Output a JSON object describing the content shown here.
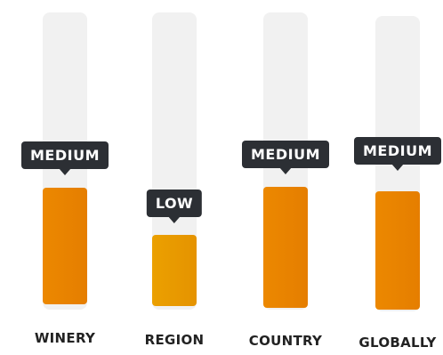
{
  "meters": [
    {
      "label": "WINERY",
      "level": "MEDIUM"
    },
    {
      "label": "REGION",
      "level": "LOW"
    },
    {
      "label": "COUNTRY",
      "level": "MEDIUM"
    },
    {
      "label": "GLOBALLY",
      "level": "MEDIUM"
    }
  ],
  "colors": {
    "track": "#f1f1f1",
    "fill_medium": "#e98400",
    "fill_low": "#e89a00",
    "badge_bg": "#2c2f34",
    "badge_text": "#ffffff",
    "label_text": "#222222"
  }
}
